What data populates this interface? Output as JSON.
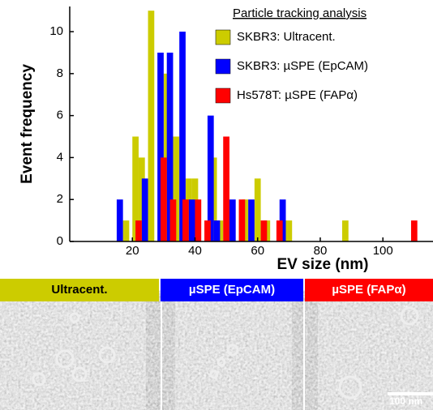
{
  "chart_data": {
    "type": "bar",
    "x_label": "EV size (nm)",
    "y_label": "Event frequency",
    "legend_title": "Particle tracking analysis",
    "xlim": [
      0,
      116
    ],
    "ylim": [
      0,
      11.2
    ],
    "xticks": [
      20,
      40,
      60,
      80,
      100
    ],
    "yticks": [
      0,
      2,
      4,
      6,
      8,
      10
    ],
    "bar_width": 2,
    "series": [
      {
        "name": "SKBR3: Ultracent.",
        "color": "#cccc00",
        "x": [
          18,
          21,
          23,
          26,
          31,
          34,
          38,
          40,
          46,
          48,
          56,
          60,
          63,
          70,
          88
        ],
        "values": [
          1,
          5,
          4,
          11,
          8,
          5,
          3,
          3,
          4,
          1,
          2,
          3,
          1,
          1,
          1
        ]
      },
      {
        "name": "SKBR3: µSPE (EpCAM)",
        "color": "#0000ff",
        "x": [
          16,
          24,
          29,
          32,
          36,
          39,
          45,
          47,
          52,
          58,
          68
        ],
        "values": [
          2,
          3,
          9,
          9,
          10,
          2,
          6,
          1,
          2,
          2,
          2
        ]
      },
      {
        "name": "Hs578T: µSPE (FAPα)",
        "color": "#ff0000",
        "x": [
          22,
          30,
          33,
          37,
          41,
          44,
          50,
          55,
          62,
          67,
          110
        ],
        "values": [
          1,
          4,
          2,
          2,
          2,
          1,
          5,
          2,
          1,
          1,
          1
        ]
      }
    ]
  },
  "panels": [
    {
      "label": "Ultracent.",
      "color": "#cccc00"
    },
    {
      "label": "µSPE (EpCAM)",
      "color": "#0000ff"
    },
    {
      "label": "µSPE (FAPα)",
      "color": "#ff0000",
      "scale_bar": "100 nm"
    }
  ]
}
